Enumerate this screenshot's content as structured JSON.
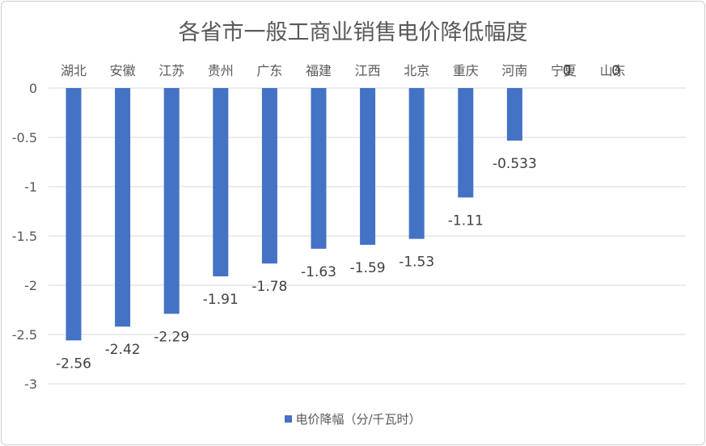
{
  "chart_data": {
    "type": "bar",
    "title": "各省市一般工商业销售电价降低幅度",
    "categories": [
      "湖北",
      "安徽",
      "江苏",
      "贵州",
      "广东",
      "福建",
      "江西",
      "北京",
      "重庆",
      "河南",
      "宁夏",
      "山东"
    ],
    "series": [
      {
        "name": "电价降幅（分/千瓦时）",
        "values": [
          -2.56,
          -2.42,
          -2.29,
          -1.91,
          -1.78,
          -1.63,
          -1.59,
          -1.53,
          -1.11,
          -0.533,
          0,
          0
        ],
        "labels": [
          "-2.56",
          "-2.42",
          "-2.29",
          "-1.91",
          "-1.78",
          "-1.63",
          "-1.59",
          "-1.53",
          "-1.11",
          "-0.533",
          "0",
          "0"
        ]
      }
    ],
    "ylim": [
      -3,
      0
    ],
    "yticks": [
      0,
      -0.5,
      -1,
      -1.5,
      -2,
      -2.5,
      -3
    ],
    "ytick_labels": [
      "0",
      "-0.5",
      "-1",
      "-1.5",
      "-2",
      "-2.5",
      "-3"
    ],
    "grid": true,
    "legend_position": "bottom",
    "colors": {
      "bar": "#4472c4",
      "grid": "#d9d9d9"
    }
  }
}
